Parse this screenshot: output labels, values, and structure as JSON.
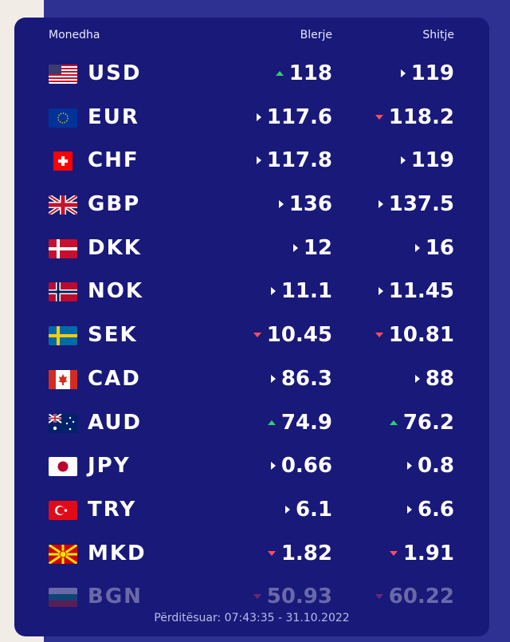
{
  "header": {
    "currency": "Monedha",
    "buy": "Blerje",
    "sell": "Shitje"
  },
  "rates": [
    {
      "flag": "us-flag-icon",
      "code": "USD",
      "buy": "118",
      "buy_trend": "up",
      "sell": "119",
      "sell_trend": "flat"
    },
    {
      "flag": "eu-flag-icon",
      "code": "EUR",
      "buy": "117.6",
      "buy_trend": "flat",
      "sell": "118.2",
      "sell_trend": "down"
    },
    {
      "flag": "ch-flag-icon",
      "code": "CHF",
      "buy": "117.8",
      "buy_trend": "flat",
      "sell": "119",
      "sell_trend": "flat"
    },
    {
      "flag": "gb-flag-icon",
      "code": "GBP",
      "buy": "136",
      "buy_trend": "flat",
      "sell": "137.5",
      "sell_trend": "flat"
    },
    {
      "flag": "dk-flag-icon",
      "code": "DKK",
      "buy": "12",
      "buy_trend": "flat",
      "sell": "16",
      "sell_trend": "flat"
    },
    {
      "flag": "no-flag-icon",
      "code": "NOK",
      "buy": "11.1",
      "buy_trend": "flat",
      "sell": "11.45",
      "sell_trend": "flat"
    },
    {
      "flag": "se-flag-icon",
      "code": "SEK",
      "buy": "10.45",
      "buy_trend": "down",
      "sell": "10.81",
      "sell_trend": "down"
    },
    {
      "flag": "ca-flag-icon",
      "code": "CAD",
      "buy": "86.3",
      "buy_trend": "flat",
      "sell": "88",
      "sell_trend": "flat"
    },
    {
      "flag": "au-flag-icon",
      "code": "AUD",
      "buy": "74.9",
      "buy_trend": "up",
      "sell": "76.2",
      "sell_trend": "up"
    },
    {
      "flag": "jp-flag-icon",
      "code": "JPY",
      "buy": "0.66",
      "buy_trend": "flat",
      "sell": "0.8",
      "sell_trend": "flat"
    },
    {
      "flag": "tr-flag-icon",
      "code": "TRY",
      "buy": "6.1",
      "buy_trend": "flat",
      "sell": "6.6",
      "sell_trend": "flat"
    },
    {
      "flag": "mk-flag-icon",
      "code": "MKD",
      "buy": "1.82",
      "buy_trend": "down",
      "sell": "1.91",
      "sell_trend": "down"
    },
    {
      "flag": "bg-flag-icon",
      "code": "BGN",
      "buy": "50.93",
      "buy_trend": "down",
      "sell": "60.22",
      "sell_trend": "down"
    }
  ],
  "footer": {
    "updated": "Përditësuar: 07:43:35 - 31.10.2022"
  },
  "colors": {
    "panel": "#19197a",
    "background": "#2e3192",
    "up": "#2fd06a",
    "down": "#ff4d5e"
  }
}
